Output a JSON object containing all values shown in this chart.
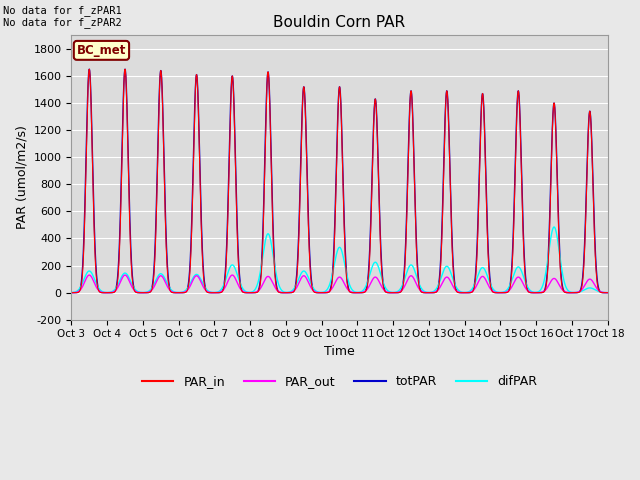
{
  "title": "Bouldin Corn PAR",
  "ylabel": "PAR (umol/m2/s)",
  "xlabel": "Time",
  "ylim": [
    -200,
    1900
  ],
  "yticks": [
    -200,
    0,
    200,
    400,
    600,
    800,
    1000,
    1200,
    1400,
    1600,
    1800
  ],
  "x_labels": [
    "Oct 3",
    "Oct 4",
    "Oct 5",
    "Oct 6",
    "Oct 7",
    "Oct 8",
    "Oct 9",
    "Oct 10",
    "Oct 11",
    "Oct 12",
    "Oct 13",
    "Oct 14",
    "Oct 15",
    "Oct 16",
    "Oct 17",
    "Oct 18"
  ],
  "annotation_text": "No data for f_zPAR1\nNo data for f_zPAR2",
  "legend_box_text": "BC_met",
  "legend_box_bg": "#FFFFCC",
  "legend_box_edge": "#800000",
  "bg_color": "#E8E8E8",
  "plot_bg_color": "#DCDCDC",
  "colors": {
    "PAR_in": "#FF0000",
    "PAR_out": "#FF00FF",
    "totPAR": "#0000CC",
    "difPAR": "#00FFFF"
  },
  "n_days": 15,
  "peak_heights_totPAR": [
    1650,
    1650,
    1640,
    1610,
    1600,
    1630,
    1520,
    1520,
    1430,
    1490,
    1490,
    1470,
    1490,
    1400,
    1340
  ],
  "peak_heights_PAR_in": [
    1650,
    1650,
    1640,
    1610,
    1600,
    1630,
    1520,
    1520,
    1430,
    1490,
    1490,
    1470,
    1490,
    1400,
    1340
  ],
  "peak_heights_PAR_out": [
    130,
    130,
    125,
    125,
    130,
    120,
    125,
    115,
    115,
    125,
    115,
    120,
    115,
    105,
    100
  ],
  "peak_heights_difPAR": [
    160,
    145,
    140,
    135,
    205,
    435,
    160,
    335,
    225,
    205,
    195,
    185,
    190,
    485,
    35
  ],
  "points_per_day": 288,
  "peak_sigma": 0.09,
  "par_out_sigma": 0.13,
  "difpar_sigma": 0.15
}
